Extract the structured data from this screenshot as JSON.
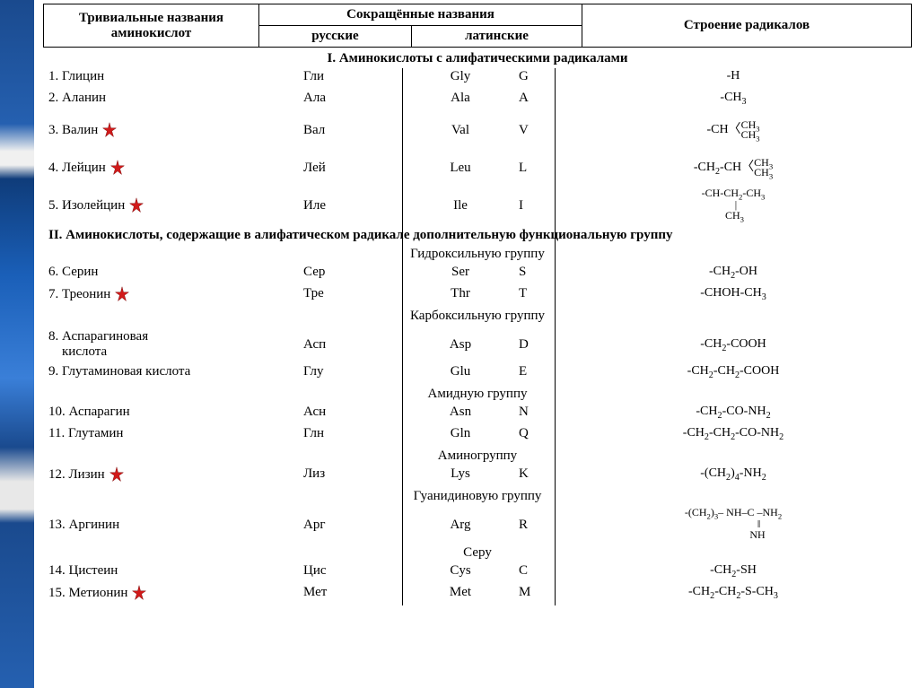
{
  "header": {
    "col1": "Тривиальные названия аминокислот",
    "col_abbrev": "Сокращённые названия",
    "col2a": "русские",
    "col2b": "латинские",
    "col3": "Строение радикалов"
  },
  "sections": {
    "s1": "I. Аминокислоты с алифатическими радикалами",
    "s2": "II. Аминокислоты, содержащие в алифатическом радикале дополнительную функциональную группу",
    "g_hydroxy": "Гидроксильную группу",
    "g_carboxy": "Карбоксильную группу",
    "g_amide": "Амидную группу",
    "g_amino": "Аминогруппу",
    "g_guan": "Гуанидиновую группу",
    "g_sulfur": "Серу"
  },
  "rows": {
    "r1": {
      "name": "1. Глицин",
      "ru": "Гли",
      "lat": "Gly",
      "code": "G",
      "radical": "-H",
      "star": false
    },
    "r2": {
      "name": "2. Аланин",
      "ru": "Ала",
      "lat": "Ala",
      "code": "A",
      "radical": "-CH₃",
      "star": false
    },
    "r3": {
      "name": "3. Валин",
      "ru": "Вал",
      "lat": "Val",
      "code": "V",
      "radical": "-CH〈CH₃/CH₃",
      "star": true
    },
    "r4": {
      "name": "4. Лейцин",
      "ru": "Лей",
      "lat": "Leu",
      "code": "L",
      "radical": "-CH₂-CH〈CH₃/CH₃",
      "star": true
    },
    "r5": {
      "name": "5. Изолейцин",
      "ru": "Иле",
      "lat": "Ile",
      "code": "I",
      "radical": "-CH-CH₂-CH₃ | CH₃",
      "star": true
    },
    "r6": {
      "name": "6. Серин",
      "ru": "Сер",
      "lat": "Ser",
      "code": "S",
      "radical": "-CH₂-OH",
      "star": false
    },
    "r7": {
      "name": "7. Треонин",
      "ru": "Тре",
      "lat": "Thr",
      "code": "T",
      "radical": "-CHOH-CH₃",
      "star": true
    },
    "r8": {
      "name": "8. Аспарагиновая кислота",
      "ru": "Асп",
      "lat": "Asp",
      "code": "D",
      "radical": "-CH₂-COOH",
      "star": false
    },
    "r9": {
      "name": "9. Глутаминовая кислота",
      "ru": "Глу",
      "lat": "Glu",
      "code": "E",
      "radical": "-CH₂-CH₂-COOH",
      "star": false
    },
    "r10": {
      "name": "10. Аспарагин",
      "ru": "Асн",
      "lat": "Asn",
      "code": "N",
      "radical": "-CH₂-CO-NH₂",
      "star": false
    },
    "r11": {
      "name": "11. Глутамин",
      "ru": "Глн",
      "lat": "Gln",
      "code": "Q",
      "radical": "-CH₂-CH₂-CO-NH₂",
      "star": false
    },
    "r12": {
      "name": "12. Лизин",
      "ru": "Лиз",
      "lat": "Lys",
      "code": "K",
      "radical": "-(CH₂)₄-NH₂",
      "star": true
    },
    "r13": {
      "name": "13. Аргинин",
      "ru": "Арг",
      "lat": "Arg",
      "code": "R",
      "radical": "-(CH₂)₃-NH-C-NH₂ ‖ NH",
      "star": false
    },
    "r14": {
      "name": "14. Цистеин",
      "ru": "Цис",
      "lat": "Cys",
      "code": "C",
      "radical": "-CH₂-SH",
      "star": false
    },
    "r15": {
      "name": "15. Метионин",
      "ru": "Мет",
      "lat": "Met",
      "code": "M",
      "radical": "-CH₂-CH₂-S-CH₃",
      "star": true
    }
  },
  "style": {
    "star_fill": "#d11a1a",
    "star_stroke": "#7a0a0a",
    "text_color": "#000000",
    "border_color": "#000000",
    "bg": "#ffffff",
    "font": "Times New Roman",
    "base_fontsize_pt": 12
  }
}
